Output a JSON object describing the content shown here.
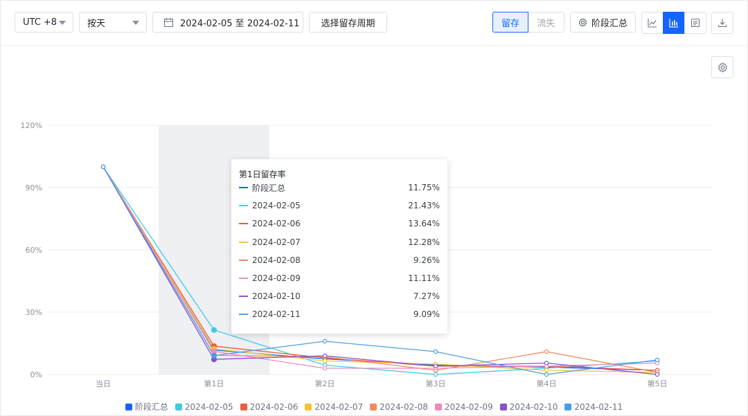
{
  "toolbar": {
    "timezone": "UTC +8",
    "granularity": "按天",
    "date_range": "2024-02-05 至 2024-02-11",
    "period_button": "选择留存周期",
    "tab_retain": "留存",
    "tab_churn": "流失",
    "stage_summary": "阶段汇总"
  },
  "colors": {
    "accent": "#1664ff",
    "series": [
      "#1664ff",
      "#3fcbe6",
      "#e85d3f",
      "#f5c231",
      "#f08a5d",
      "#ec8ac0",
      "#8b4fd1",
      "#4a9ee8"
    ]
  },
  "tooltip": {
    "title": "第1日留存率",
    "rows": [
      {
        "name": "阶段汇总",
        "value": "11.75%"
      },
      {
        "name": "2024-02-05",
        "value": "21.43%"
      },
      {
        "name": "2024-02-06",
        "value": "13.64%"
      },
      {
        "name": "2024-02-07",
        "value": "12.28%"
      },
      {
        "name": "2024-02-08",
        "value": "9.26%"
      },
      {
        "name": "2024-02-09",
        "value": "11.11%"
      },
      {
        "name": "2024-02-10",
        "value": "7.27%"
      },
      {
        "name": "2024-02-11",
        "value": "9.09%"
      }
    ]
  },
  "chart_data": {
    "type": "line",
    "title": "",
    "xlabel": "",
    "ylabel": "",
    "categories": [
      "当日",
      "第1日",
      "第2日",
      "第3日",
      "第4日",
      "第5日"
    ],
    "ylim": [
      0,
      120
    ],
    "yticks": [
      "0%",
      "30%",
      "60%",
      "90%",
      "120%"
    ],
    "grid": true,
    "legend_position": "bottom",
    "highlighted_category": "第1日",
    "series": [
      {
        "name": "阶段汇总",
        "values": [
          100,
          11.75,
          7.5,
          4.5,
          3.5,
          2
        ]
      },
      {
        "name": "2024-02-05",
        "values": [
          100,
          21.43,
          4.5,
          0,
          3,
          6.5
        ]
      },
      {
        "name": "2024-02-06",
        "values": [
          100,
          13.64,
          8,
          4,
          4,
          2
        ]
      },
      {
        "name": "2024-02-07",
        "values": [
          100,
          12.28,
          6.5,
          5,
          2,
          1
        ]
      },
      {
        "name": "2024-02-08",
        "values": [
          100,
          9.26,
          8.5,
          2,
          11,
          1
        ]
      },
      {
        "name": "2024-02-09",
        "values": [
          100,
          11.11,
          3,
          3,
          4,
          5.5
        ]
      },
      {
        "name": "2024-02-10",
        "values": [
          100,
          7.27,
          9,
          4,
          5.5,
          0
        ]
      },
      {
        "name": "2024-02-11",
        "values": [
          100,
          9.09,
          16,
          11,
          0,
          7
        ]
      }
    ]
  }
}
